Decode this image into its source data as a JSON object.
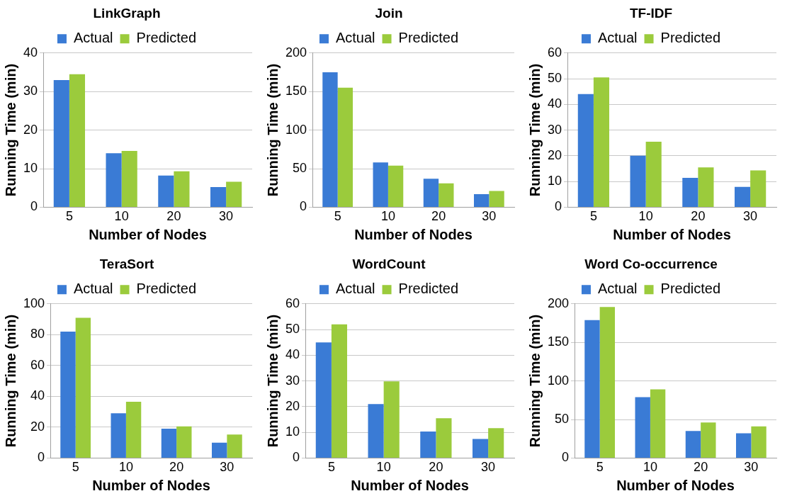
{
  "chart_data": [
    {
      "type": "bar",
      "title": "LinkGraph",
      "xlabel": "Number of Nodes",
      "ylabel": "Running Time (min)",
      "categories": [
        "5",
        "10",
        "20",
        "30"
      ],
      "series": [
        {
          "name": "Actual",
          "color": "#3a7bd5",
          "values": [
            33,
            14,
            8.2,
            5.2
          ]
        },
        {
          "name": "Predicted",
          "color": "#9bcb3c",
          "values": [
            34.5,
            14.6,
            9.3,
            6.6
          ]
        }
      ],
      "ylim": [
        0,
        40
      ],
      "yticks": [
        0,
        10,
        20,
        30,
        40
      ],
      "grid": "y",
      "legend": "top"
    },
    {
      "type": "bar",
      "title": "Join",
      "xlabel": "Number of Nodes",
      "ylabel": "Running Time (min)",
      "categories": [
        "5",
        "10",
        "20",
        "30"
      ],
      "series": [
        {
          "name": "Actual",
          "color": "#3a7bd5",
          "values": [
            175,
            58,
            37,
            17
          ]
        },
        {
          "name": "Predicted",
          "color": "#9bcb3c",
          "values": [
            155,
            54,
            31,
            21
          ]
        }
      ],
      "ylim": [
        0,
        200
      ],
      "yticks": [
        0,
        50,
        100,
        150,
        200
      ],
      "grid": "y",
      "legend": "top"
    },
    {
      "type": "bar",
      "title": "TF-IDF",
      "xlabel": "Number of Nodes",
      "ylabel": "Running Time (min)",
      "categories": [
        "5",
        "10",
        "20",
        "30"
      ],
      "series": [
        {
          "name": "Actual",
          "color": "#3a7bd5",
          "values": [
            44,
            20,
            11.4,
            7.9
          ]
        },
        {
          "name": "Predicted",
          "color": "#9bcb3c",
          "values": [
            50.5,
            25.5,
            15.5,
            14.3
          ]
        }
      ],
      "ylim": [
        0,
        60
      ],
      "yticks": [
        0,
        10,
        20,
        30,
        40,
        50,
        60
      ],
      "grid": "y",
      "legend": "top"
    },
    {
      "type": "bar",
      "title": "TeraSort",
      "xlabel": "Number of Nodes",
      "ylabel": "Running Time (min)",
      "categories": [
        "5",
        "10",
        "20",
        "30"
      ],
      "series": [
        {
          "name": "Actual",
          "color": "#3a7bd5",
          "values": [
            82,
            29,
            19,
            10
          ]
        },
        {
          "name": "Predicted",
          "color": "#9bcb3c",
          "values": [
            91,
            36.5,
            20.5,
            15.2
          ]
        }
      ],
      "ylim": [
        0,
        100
      ],
      "yticks": [
        0,
        20,
        40,
        60,
        80,
        100
      ],
      "grid": "y",
      "legend": "top"
    },
    {
      "type": "bar",
      "title": "WordCount",
      "xlabel": "Number of Nodes",
      "ylabel": "Running Time (min)",
      "categories": [
        "5",
        "10",
        "20",
        "30"
      ],
      "series": [
        {
          "name": "Actual",
          "color": "#3a7bd5",
          "values": [
            45,
            21,
            10.3,
            7.4
          ]
        },
        {
          "name": "Predicted",
          "color": "#9bcb3c",
          "values": [
            52,
            29.8,
            15.5,
            11.6
          ]
        }
      ],
      "ylim": [
        0,
        60
      ],
      "yticks": [
        0,
        10,
        20,
        30,
        40,
        50,
        60
      ],
      "grid": "y",
      "legend": "top"
    },
    {
      "type": "bar",
      "title": "Word Co-occurrence",
      "xlabel": "Number of Nodes",
      "ylabel": "Running Time (min)",
      "categories": [
        "5",
        "10",
        "20",
        "30"
      ],
      "series": [
        {
          "name": "Actual",
          "color": "#3a7bd5",
          "values": [
            179,
            79,
            35,
            32
          ]
        },
        {
          "name": "Predicted",
          "color": "#9bcb3c",
          "values": [
            196,
            89,
            46,
            41
          ]
        }
      ],
      "ylim": [
        0,
        200
      ],
      "yticks": [
        0,
        50,
        100,
        150,
        200
      ],
      "grid": "y",
      "legend": "top"
    }
  ]
}
